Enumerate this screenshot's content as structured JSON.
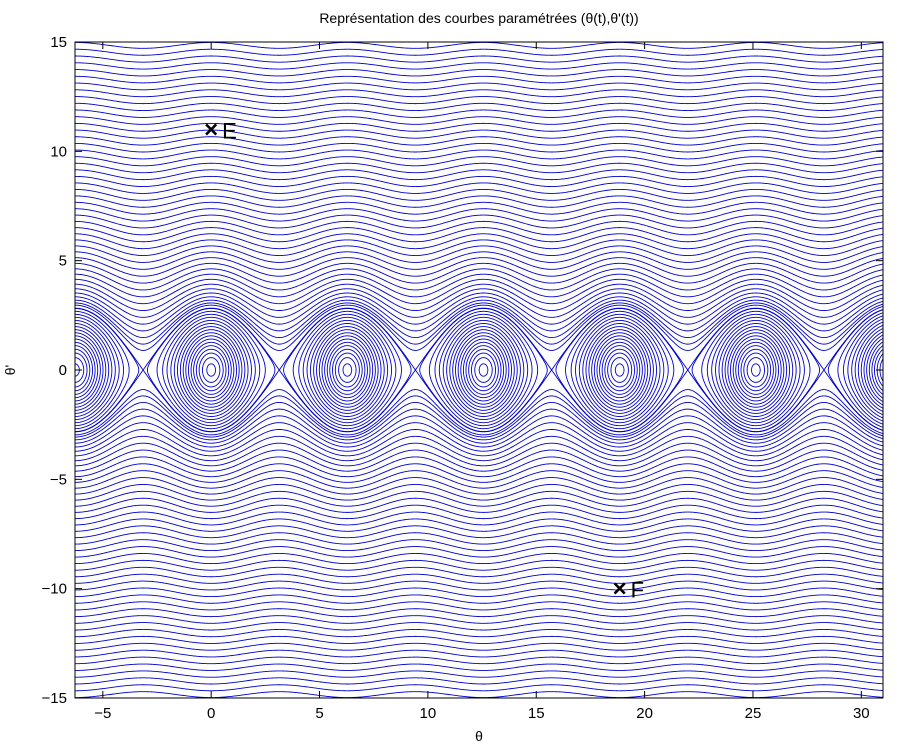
{
  "chart_data": {
    "type": "line",
    "title": "Représentation des courbes paramétrées (θ(t),θ'(t))",
    "xlabel": "θ",
    "ylabel": "θ'",
    "xlim": [
      -6.2832,
      31.0
    ],
    "ylim": [
      -15,
      15
    ],
    "xticks": [
      -5,
      0,
      5,
      10,
      15,
      20,
      25,
      30
    ],
    "yticks": [
      -15,
      -10,
      -5,
      0,
      5,
      10,
      15
    ],
    "xtick_labels": [
      "−5",
      "0",
      "5",
      "10",
      "15",
      "20",
      "25",
      "30"
    ],
    "ytick_labels": [
      "−15",
      "−10",
      "−5",
      "0",
      "5",
      "10",
      "15"
    ],
    "grid": false,
    "line_color": "#0000cc",
    "curves": {
      "family": "phase portrait of the pendulum: θ'^2/2 − 2·cos θ = E",
      "energy_levels": [
        -1.96,
        -1.84,
        -1.7,
        -1.55,
        -1.38,
        -1.2,
        -1.0,
        -0.78,
        -0.55,
        -0.3,
        -0.03,
        0.26,
        0.57,
        0.9,
        1.24,
        1.6,
        1.96,
        2.0,
        2.4,
        2.7,
        3.1,
        3.6,
        4.2,
        4.9,
        5.7,
        6.6,
        7.6,
        8.7,
        9.9,
        11.2,
        12.6,
        14.1,
        15.7,
        17.4,
        19.2,
        21.1,
        23.1,
        25.2,
        27.4,
        29.7,
        32.1,
        34.6,
        37.2,
        39.9,
        42.7,
        45.6,
        48.6,
        51.7,
        54.9,
        58.2,
        61.6,
        65.1,
        68.7,
        72.4,
        76.2,
        80.1,
        84.1,
        88.2,
        92.4,
        96.7,
        101.1,
        105.6,
        110.2,
        114.9
      ]
    },
    "annotations": [
      {
        "label": "E",
        "marker": "×",
        "x": 0,
        "y": 11
      },
      {
        "label": "F",
        "marker": "×",
        "x": 18.85,
        "y": -10
      }
    ]
  }
}
